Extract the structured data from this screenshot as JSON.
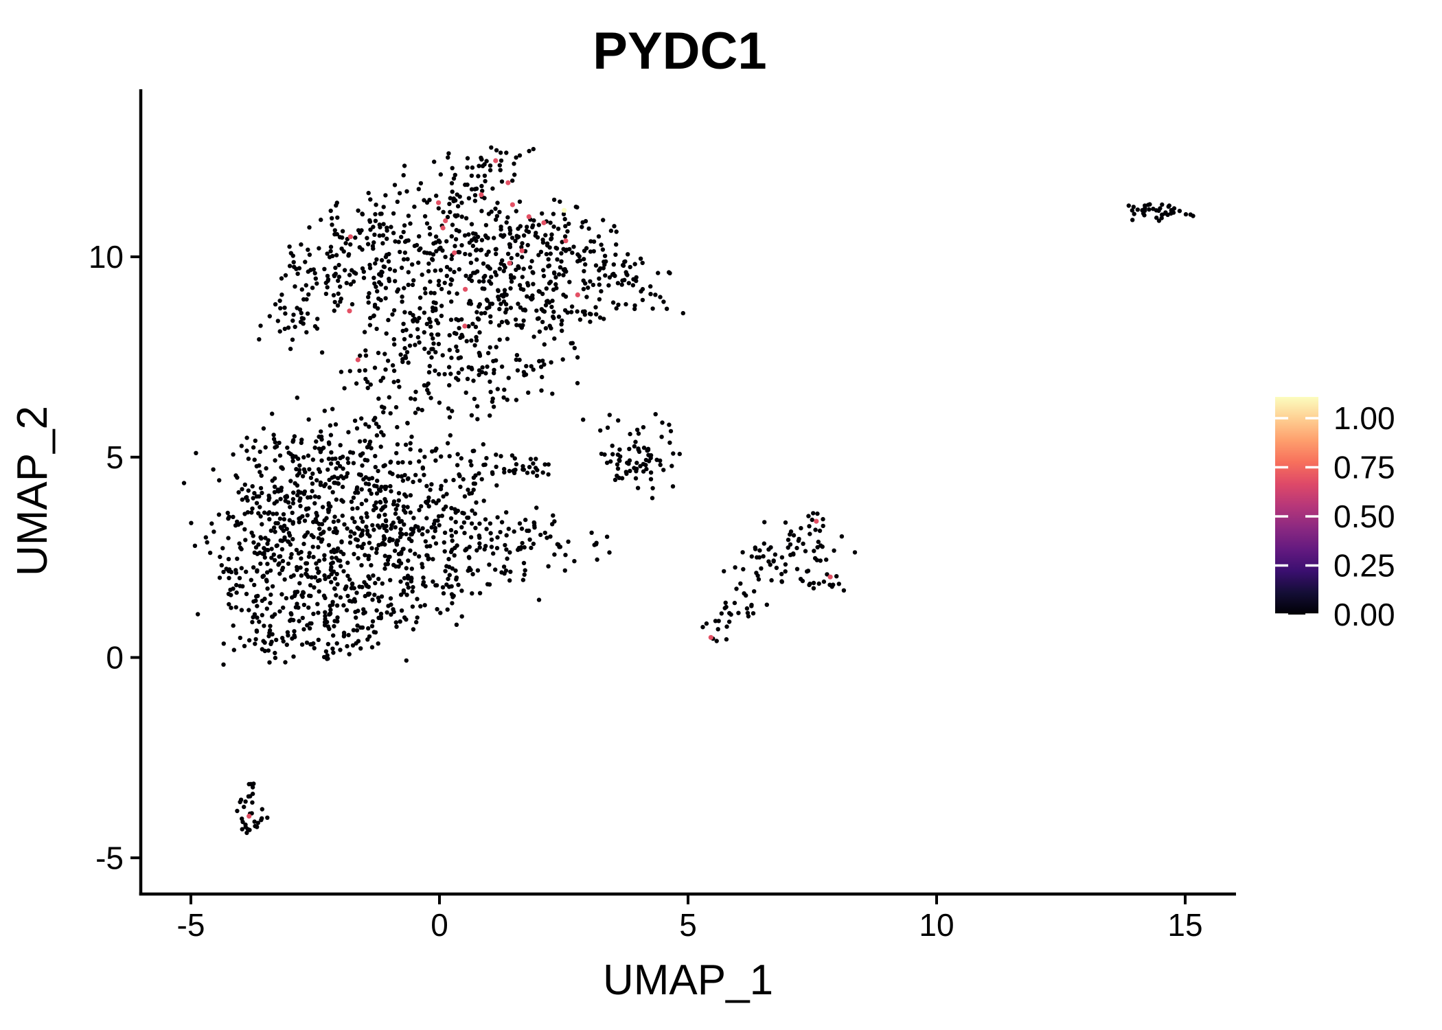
{
  "page": {
    "background": "#ffffff"
  },
  "chart_data": {
    "type": "scatter",
    "title": "PYDC1",
    "xlabel": "UMAP_1",
    "ylabel": "UMAP_2",
    "x_ticks": [
      -5,
      0,
      5,
      10,
      15
    ],
    "y_ticks": [
      -5,
      0,
      5,
      10
    ],
    "xlim": [
      -6.0,
      16.0
    ],
    "ylim": [
      -5.9,
      14.1
    ],
    "grid": false,
    "point_radius_px": 3.2,
    "point_color_default": "#000006",
    "legend": {
      "position": "right",
      "tick_labels": [
        "1.00",
        "0.75",
        "0.50",
        "0.25",
        "0.00"
      ],
      "tick_values": [
        1.0,
        0.75,
        0.5,
        0.25,
        0.0
      ],
      "scale_max": 1.11,
      "colormap": "magma",
      "colormap_stops": [
        "#000004",
        "#140e36",
        "#3b0f70",
        "#641a80",
        "#8c2981",
        "#b73779",
        "#de4968",
        "#f7705c",
        "#fe9f6d",
        "#fecf92",
        "#fcfdbf"
      ]
    },
    "seed": 20240613,
    "clusters": [
      {
        "name": "upper-main-cluster",
        "components": [
          [
            1.15,
            12.25,
            25,
            0.33
          ],
          [
            0.5,
            11.6,
            40,
            0.45
          ],
          [
            -0.6,
            10.9,
            55,
            0.55
          ],
          [
            -1.8,
            10.3,
            50,
            0.5
          ],
          [
            -2.6,
            9.5,
            40,
            0.45
          ],
          [
            -2.9,
            8.4,
            30,
            0.4
          ],
          [
            -1.6,
            9.1,
            55,
            0.55
          ],
          [
            -0.4,
            10.0,
            65,
            0.55
          ],
          [
            0.8,
            10.6,
            55,
            0.5
          ],
          [
            1.9,
            10.7,
            50,
            0.48
          ],
          [
            2.7,
            10.4,
            40,
            0.45
          ],
          [
            1.1,
            9.5,
            65,
            0.6
          ],
          [
            2.3,
            9.4,
            55,
            0.5
          ],
          [
            3.4,
            9.6,
            40,
            0.45
          ],
          [
            4.1,
            9.1,
            28,
            0.4
          ],
          [
            0.0,
            8.6,
            55,
            0.55
          ],
          [
            1.4,
            8.4,
            45,
            0.5
          ],
          [
            2.5,
            8.3,
            35,
            0.45
          ],
          [
            -0.6,
            7.7,
            40,
            0.5
          ],
          [
            0.7,
            7.4,
            35,
            0.45
          ],
          [
            1.7,
            7.3,
            25,
            0.4
          ],
          [
            -1.3,
            7.0,
            22,
            0.4
          ],
          [
            -0.2,
            6.5,
            18,
            0.35
          ],
          [
            0.9,
            6.4,
            12,
            0.3
          ]
        ]
      },
      {
        "name": "lower-left-cluster",
        "components": [
          [
            -3.3,
            5.0,
            35,
            0.45
          ],
          [
            -2.3,
            5.4,
            30,
            0.48
          ],
          [
            -1.2,
            5.6,
            25,
            0.45
          ],
          [
            -3.5,
            4.0,
            50,
            0.5
          ],
          [
            -2.5,
            4.4,
            65,
            0.55
          ],
          [
            -1.4,
            4.6,
            50,
            0.5
          ],
          [
            -0.4,
            4.8,
            35,
            0.45
          ],
          [
            0.5,
            4.9,
            15,
            0.35
          ],
          [
            -3.6,
            3.0,
            55,
            0.5
          ],
          [
            -2.6,
            3.3,
            75,
            0.58
          ],
          [
            -1.5,
            3.5,
            65,
            0.55
          ],
          [
            -0.5,
            3.7,
            50,
            0.5
          ],
          [
            0.4,
            4.0,
            30,
            0.42
          ],
          [
            -3.7,
            1.9,
            50,
            0.48
          ],
          [
            -2.7,
            2.2,
            70,
            0.55
          ],
          [
            -1.6,
            2.4,
            65,
            0.55
          ],
          [
            -0.6,
            2.7,
            50,
            0.5
          ],
          [
            0.4,
            2.9,
            38,
            0.45
          ],
          [
            1.3,
            3.1,
            25,
            0.4
          ],
          [
            2.1,
            3.0,
            15,
            0.35
          ],
          [
            -3.5,
            0.9,
            40,
            0.45
          ],
          [
            -2.5,
            1.1,
            50,
            0.48
          ],
          [
            -1.5,
            1.3,
            45,
            0.48
          ],
          [
            -0.5,
            1.6,
            35,
            0.45
          ],
          [
            0.5,
            1.9,
            25,
            0.4
          ],
          [
            1.5,
            2.3,
            18,
            0.35
          ],
          [
            2.4,
            2.6,
            12,
            0.3
          ],
          [
            3.1,
            2.8,
            7,
            0.25
          ],
          [
            -3.2,
            0.3,
            22,
            0.33
          ],
          [
            -2.2,
            0.4,
            22,
            0.36
          ],
          [
            -1.2,
            0.6,
            16,
            0.35
          ]
        ]
      },
      {
        "name": "small-streak-cluster",
        "components": [
          [
            1.75,
            4.65,
            22,
            0.22,
            0.14
          ],
          [
            1.2,
            4.9,
            8,
            0.25,
            0.2
          ]
        ]
      },
      {
        "name": "mid-right-cluster",
        "components": [
          [
            3.6,
            5.0,
            16,
            0.28
          ],
          [
            4.2,
            5.0,
            28,
            0.33
          ],
          [
            3.9,
            4.55,
            18,
            0.28
          ],
          [
            3.35,
            5.65,
            6,
            0.22
          ],
          [
            4.35,
            5.6,
            8,
            0.26
          ]
        ]
      },
      {
        "name": "right-diagonal-cluster",
        "components": [
          [
            7.0,
            2.6,
            28,
            0.35
          ],
          [
            7.5,
            2.95,
            22,
            0.3
          ],
          [
            6.6,
            2.2,
            18,
            0.33
          ],
          [
            6.15,
            1.5,
            14,
            0.28
          ],
          [
            5.85,
            1.05,
            10,
            0.22
          ],
          [
            5.55,
            0.65,
            7,
            0.18
          ],
          [
            7.7,
            1.85,
            14,
            0.3,
            0.12
          ],
          [
            7.55,
            3.3,
            5,
            0.15
          ]
        ]
      },
      {
        "name": "far-right-cluster",
        "components": [
          [
            14.5,
            11.15,
            40,
            0.27,
            0.11
          ]
        ]
      },
      {
        "name": "bottom-left-cluster",
        "components": [
          [
            -3.75,
            -3.3,
            7,
            0.1,
            0.14
          ],
          [
            -3.85,
            -3.7,
            8,
            0.12,
            0.15
          ],
          [
            -3.7,
            -4.05,
            9,
            0.14,
            0.12
          ],
          [
            -3.85,
            -4.4,
            7,
            0.1,
            0.12
          ]
        ]
      }
    ],
    "expressing_cells": [
      {
        "x": 1.13,
        "y": 12.4,
        "value": 0.69
      },
      {
        "x": 1.38,
        "y": 11.85,
        "value": 0.69
      },
      {
        "x": 0.84,
        "y": 11.55,
        "value": 0.69
      },
      {
        "x": -0.02,
        "y": 11.35,
        "value": 0.69
      },
      {
        "x": 0.12,
        "y": 10.9,
        "value": 0.69
      },
      {
        "x": 0.07,
        "y": 10.72,
        "value": 0.69
      },
      {
        "x": 1.47,
        "y": 11.3,
        "value": 0.69
      },
      {
        "x": 1.8,
        "y": 11.0,
        "value": 0.69
      },
      {
        "x": 2.1,
        "y": 10.85,
        "value": 0.69
      },
      {
        "x": 2.54,
        "y": 10.4,
        "value": 0.69
      },
      {
        "x": 2.51,
        "y": 11.16,
        "value": 1.11
      },
      {
        "x": 1.66,
        "y": 10.15,
        "value": 0.69
      },
      {
        "x": 0.3,
        "y": 10.1,
        "value": 0.69
      },
      {
        "x": -1.79,
        "y": 10.5,
        "value": 0.69
      },
      {
        "x": 1.41,
        "y": 9.84,
        "value": 0.69
      },
      {
        "x": 0.52,
        "y": 9.19,
        "value": 0.69
      },
      {
        "x": 2.78,
        "y": 9.05,
        "value": 0.69
      },
      {
        "x": 0.51,
        "y": 8.27,
        "value": 0.69
      },
      {
        "x": -1.81,
        "y": 8.65,
        "value": 0.69
      },
      {
        "x": -1.64,
        "y": 7.43,
        "value": 0.69
      },
      {
        "x": 7.58,
        "y": 3.4,
        "value": 0.69
      },
      {
        "x": 7.86,
        "y": 2.01,
        "value": 0.69
      },
      {
        "x": 5.46,
        "y": 0.5,
        "value": 0.69
      },
      {
        "x": -3.83,
        "y": -3.96,
        "value": 0.69
      }
    ]
  }
}
